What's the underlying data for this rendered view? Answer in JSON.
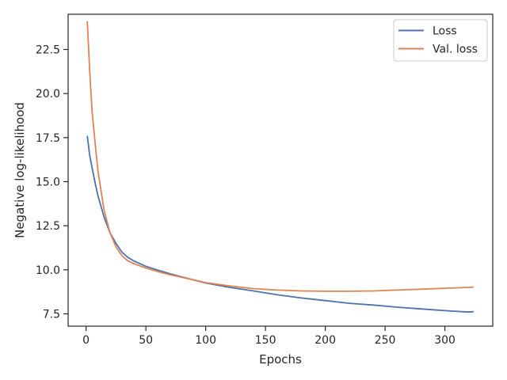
{
  "chart_data": {
    "type": "line",
    "xlabel": "Epochs",
    "ylabel": "Negative log-likelihood",
    "xlim": [
      -15,
      340
    ],
    "ylim": [
      6.8,
      24.5
    ],
    "xticks": [
      0,
      50,
      100,
      150,
      200,
      250,
      300
    ],
    "xtick_labels": [
      "0",
      "50",
      "100",
      "150",
      "200",
      "250",
      "300"
    ],
    "yticks": [
      7.5,
      10.0,
      12.5,
      15.0,
      17.5,
      20.0,
      22.5
    ],
    "ytick_labels": [
      "7.5",
      "10.0",
      "12.5",
      "15.0",
      "17.5",
      "20.0",
      "22.5"
    ],
    "grid": false,
    "legend_position": "top-right",
    "series": [
      {
        "name": "Loss",
        "color": "#4c72b0",
        "points": [
          [
            1,
            17.6
          ],
          [
            3,
            16.5
          ],
          [
            5,
            15.8
          ],
          [
            8,
            14.8
          ],
          [
            10,
            14.2
          ],
          [
            15,
            13.0
          ],
          [
            20,
            12.1
          ],
          [
            25,
            11.5
          ],
          [
            30,
            11.0
          ],
          [
            35,
            10.7
          ],
          [
            40,
            10.5
          ],
          [
            50,
            10.2
          ],
          [
            60,
            9.98
          ],
          [
            70,
            9.78
          ],
          [
            80,
            9.6
          ],
          [
            100,
            9.25
          ],
          [
            120,
            9.0
          ],
          [
            140,
            8.8
          ],
          [
            160,
            8.58
          ],
          [
            180,
            8.4
          ],
          [
            200,
            8.25
          ],
          [
            220,
            8.1
          ],
          [
            240,
            8.0
          ],
          [
            260,
            7.88
          ],
          [
            280,
            7.78
          ],
          [
            300,
            7.68
          ],
          [
            320,
            7.6
          ],
          [
            324,
            7.62
          ]
        ]
      },
      {
        "name": "Val. loss",
        "color": "#dd8452",
        "points": [
          [
            1,
            24.1
          ],
          [
            3,
            21.3
          ],
          [
            5,
            19.0
          ],
          [
            8,
            16.9
          ],
          [
            10,
            15.6
          ],
          [
            15,
            13.4
          ],
          [
            20,
            12.1
          ],
          [
            25,
            11.3
          ],
          [
            30,
            10.8
          ],
          [
            35,
            10.5
          ],
          [
            40,
            10.35
          ],
          [
            50,
            10.1
          ],
          [
            60,
            9.9
          ],
          [
            70,
            9.72
          ],
          [
            80,
            9.57
          ],
          [
            100,
            9.27
          ],
          [
            120,
            9.08
          ],
          [
            140,
            8.93
          ],
          [
            160,
            8.85
          ],
          [
            180,
            8.8
          ],
          [
            200,
            8.78
          ],
          [
            220,
            8.78
          ],
          [
            240,
            8.8
          ],
          [
            260,
            8.85
          ],
          [
            280,
            8.9
          ],
          [
            300,
            8.95
          ],
          [
            320,
            9.0
          ],
          [
            324,
            9.02
          ]
        ]
      }
    ]
  }
}
